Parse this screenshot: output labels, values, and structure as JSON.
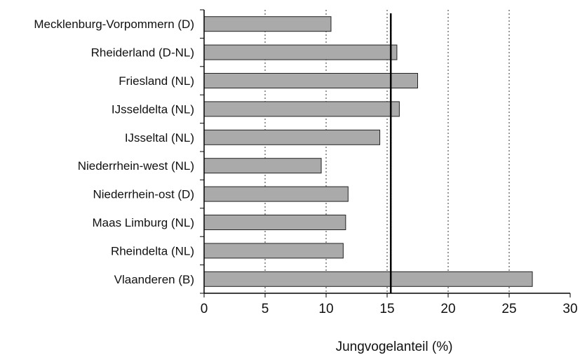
{
  "chart_data": {
    "type": "bar",
    "orientation": "horizontal",
    "categories": [
      "Mecklenburg-Vorpommern (D)",
      "Rheiderland (D-NL)",
      "Friesland (NL)",
      "IJsseldelta (NL)",
      "IJsseltal (NL)",
      "Niederrhein-west (NL)",
      "Niederrhein-ost (D)",
      "Maas Limburg (NL)",
      "Rheindelta (NL)",
      "Vlaanderen (B)"
    ],
    "values": [
      10.4,
      15.8,
      17.5,
      16.0,
      14.4,
      9.6,
      11.8,
      11.6,
      11.4,
      26.9
    ],
    "xlabel": "Jungvogelanteil (%)",
    "ylabel": "",
    "xlim": [
      0,
      30
    ],
    "xticks": [
      "0",
      "5",
      "10",
      "15",
      "20",
      "25",
      "30"
    ],
    "grid": "vertical dotted",
    "reference_line": 15.3,
    "bar_color": "#aaaaaa",
    "bar_edge_color": "#222222"
  }
}
